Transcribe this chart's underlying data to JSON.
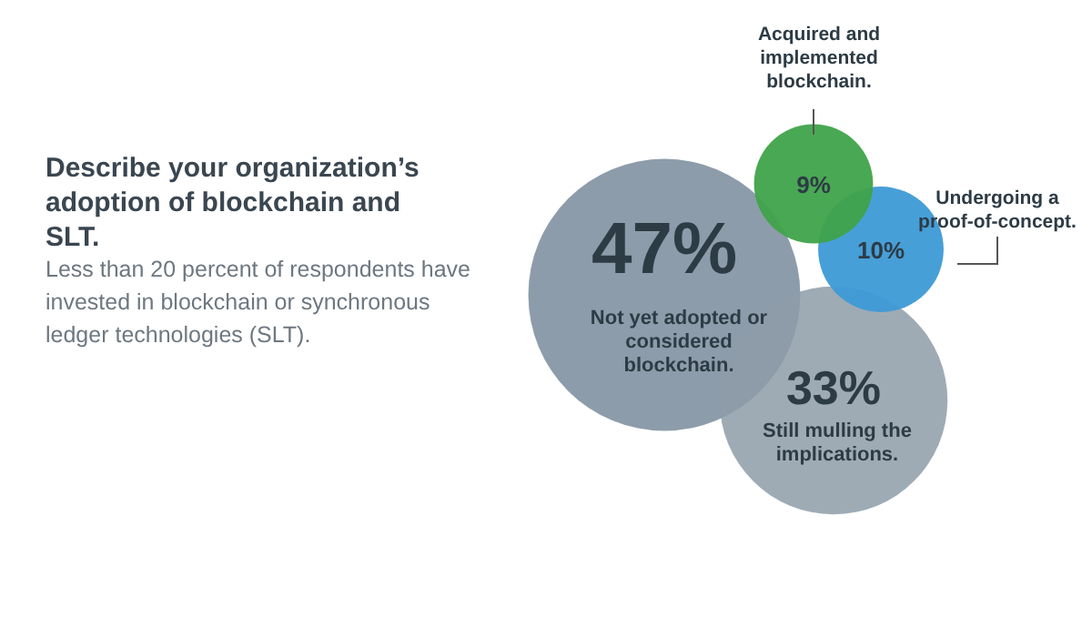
{
  "chart_data": {
    "type": "other",
    "title": "Describe your organization’s adoption of blockchain and SLT.",
    "subtitle": "Less than 20 percent of respondents have invested in blockchain or synchronous ledger technologies (SLT).",
    "categories": [
      "Not yet adopted or considered blockchain.",
      "Still mulling the implications.",
      "Acquired and implemented blockchain.",
      "Undergoing a proof-of-concept."
    ],
    "values": [
      47,
      33,
      9,
      10
    ],
    "value_labels": [
      "47%",
      "33%",
      "9%",
      "10%"
    ],
    "colors": [
      "#8797a5",
      "#8d9ca8",
      "#3fa34a",
      "#3d9ad6"
    ]
  }
}
